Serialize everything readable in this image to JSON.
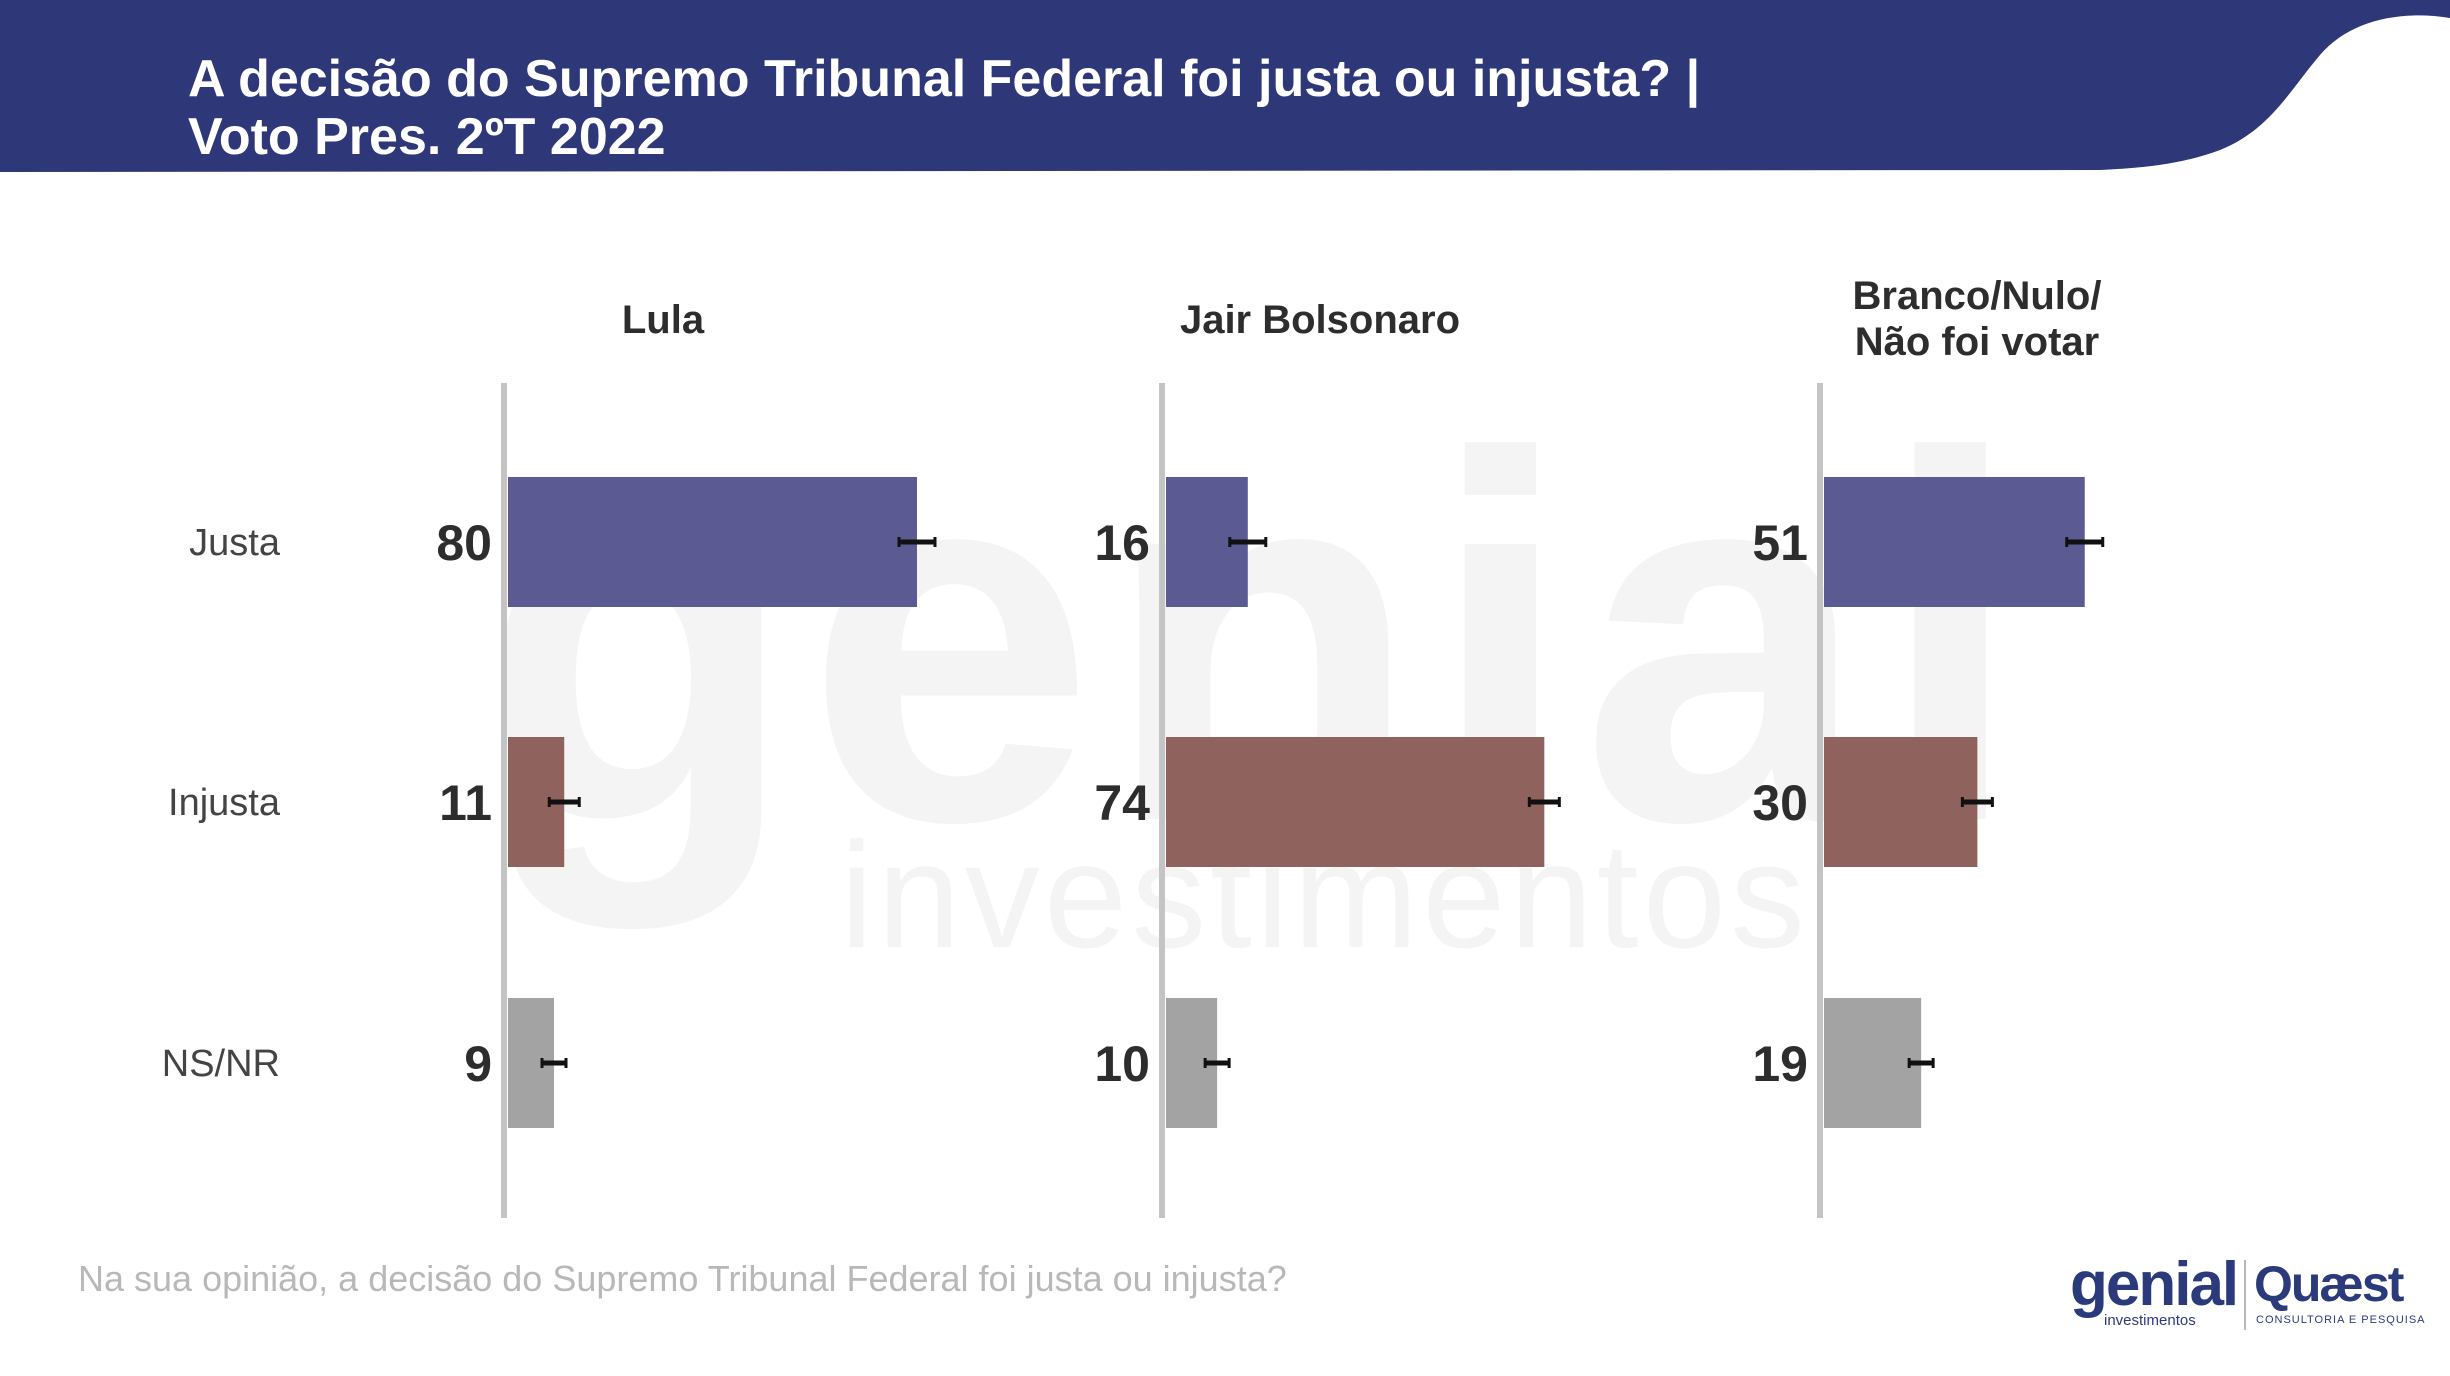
{
  "header": {
    "title_line1": "A decisão do Supremo Tribunal Federal foi justa ou injusta? |",
    "title_line2": "Voto Pres. 2ºT 2022"
  },
  "watermark": {
    "word": "genial",
    "sub": "investimentos"
  },
  "chart_data": {
    "type": "bar",
    "orientation": "horizontal",
    "categories": [
      "Justa",
      "Injusta",
      "NS/NR"
    ],
    "category_colors": [
      "#5b5a93",
      "#8f625e",
      "#a3a3a3"
    ],
    "panels": [
      {
        "title_lines": [
          "Lula"
        ],
        "values": [
          80,
          11,
          9
        ]
      },
      {
        "title_lines": [
          "Jair Bolsonaro"
        ],
        "values": [
          16,
          74,
          10
        ]
      },
      {
        "title_lines": [
          "Branco/Nulo/",
          "Não foi votar"
        ],
        "values": [
          51,
          30,
          19
        ]
      }
    ],
    "error_bars": true,
    "grid": false,
    "legend": "none",
    "xlim": [
      0,
      100
    ]
  },
  "footer": {
    "question": "Na sua opinião, a decisão do Supremo Tribunal Federal foi justa ou injusta?",
    "logo_genial": "genial",
    "logo_genial_sub": "investimentos",
    "logo_quaest": "Quæst",
    "logo_quaest_sub": "CONSULTORIA E PESQUISA"
  },
  "colors": {
    "header": "#2e3878",
    "axis": "#c4c4c4",
    "value_text": "#2d2d2d",
    "label_text": "#444444"
  }
}
